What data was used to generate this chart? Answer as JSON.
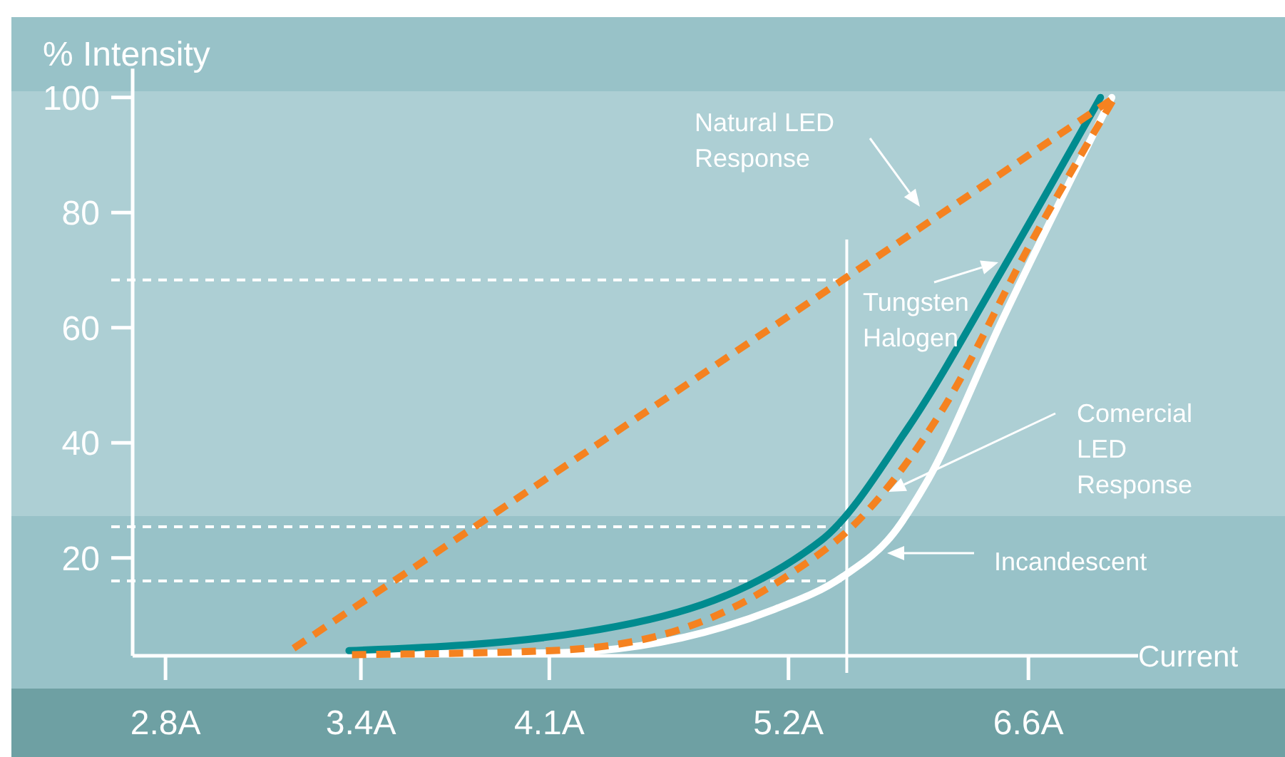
{
  "chart_data": {
    "type": "line",
    "ylabel": "% Intensity",
    "xlabel": "Current",
    "log": "x",
    "xlim": [
      2.71,
      7.36
    ],
    "xticks": [
      {
        "value": 2.8,
        "label": "2.8A"
      },
      {
        "value": 3.4,
        "label": "3.4A"
      },
      {
        "value": 4.1,
        "label": "4.1A"
      },
      {
        "value": 5.2,
        "label": "5.2A"
      },
      {
        "value": 6.6,
        "label": "6.6A"
      }
    ],
    "ylim": [
      3,
      105
    ],
    "yticks": [
      20,
      40,
      60,
      80,
      100
    ],
    "series": [
      {
        "color": "#ffffff",
        "x": [
          3.37,
          4.11,
          5.13,
          5.49,
          5.77,
          5.96,
          6.43,
          7.17
        ],
        "values": [
          3.3,
          3.5,
          11.1,
          16.8,
          24.2,
          32.9,
          61.3,
          100
        ]
      },
      {
        "color": "#008b8f",
        "x": [
          3.36,
          4.24,
          5.37,
          5.86,
          6.43,
          7.09
        ],
        "values": [
          3.9,
          7.1,
          23,
          42.8,
          70,
          100
        ]
      },
      {
        "color": "#f58220",
        "line_style": "dashed",
        "x": [
          3.37,
          4.11,
          4.71,
          5.19,
          5.58,
          6.05,
          6.62,
          7.19
        ],
        "values": [
          3.2,
          3.9,
          8.1,
          16.8,
          26.7,
          45.3,
          74.9,
          100
        ]
      },
      {
        "color": "#f58220",
        "line_style": "dashed",
        "x": [
          3.18,
          7.19
        ],
        "values": [
          4.3,
          100
        ]
      }
    ],
    "ref_lines": [
      {
        "axis": "y",
        "value": 68.3,
        "line_style": "dashed",
        "color": "#ffffff"
      },
      {
        "axis": "y",
        "value": 25.4,
        "line_style": "dashed",
        "color": "#ffffff"
      },
      {
        "axis": "y",
        "value": 16,
        "line_style": "dashed",
        "color": "#ffffff"
      },
      {
        "axis": "x",
        "value": 5.51,
        "line_style": "solid",
        "color": "#ffffff"
      }
    ],
    "annotations": [
      "Natural LED\nResponse",
      "Tungsten\nHalogen",
      "Comercial\nLED\nResponse",
      "Incandescent"
    ]
  }
}
